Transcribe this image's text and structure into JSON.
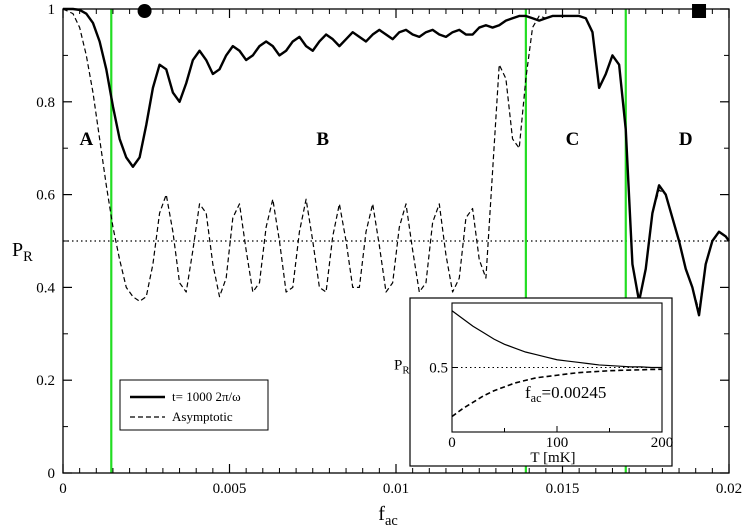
{
  "chart_data": [
    {
      "type": "line",
      "title": "",
      "xlabel": "f",
      "xlabel_sub": "ac",
      "ylabel": "P",
      "ylabel_sub": "R",
      "xlim": [
        0,
        0.02
      ],
      "ylim": [
        0,
        1
      ],
      "xticks": [
        0,
        0.005,
        0.01,
        0.015,
        0.02
      ],
      "xtick_labels": [
        "0",
        "0.005",
        "0.01",
        "0.015",
        "0.02"
      ],
      "yticks": [
        0,
        0.2,
        0.4,
        0.6,
        0.8,
        1
      ],
      "ytick_labels": [
        "0",
        "0.2",
        "0.4",
        "0.6",
        "0.8",
        "1"
      ],
      "legend_position": "bottom-left",
      "vertical_lines": {
        "color": "#22dd22",
        "x": [
          0.00145,
          0.0139,
          0.0169
        ]
      },
      "reference_line": {
        "y": 0.5,
        "style": "dotted"
      },
      "region_labels": [
        {
          "text": "A",
          "x": 0.0007,
          "y": 0.72
        },
        {
          "text": "B",
          "x": 0.0078,
          "y": 0.72
        },
        {
          "text": "C",
          "x": 0.0153,
          "y": 0.72
        },
        {
          "text": "D",
          "x": 0.0187,
          "y": 0.72
        }
      ],
      "markers": [
        {
          "shape": "circle",
          "x": 0.00245,
          "y": 1.0
        },
        {
          "shape": "square",
          "x": 0.0191,
          "y": 1.0
        }
      ],
      "series": [
        {
          "name": "t= 1000 2π/ω",
          "style": "solid-thick",
          "x": [
            0,
            0.0003,
            0.0005,
            0.0007,
            0.0009,
            0.0011,
            0.0013,
            0.0015,
            0.0017,
            0.0019,
            0.0021,
            0.0023,
            0.0025,
            0.0027,
            0.0029,
            0.0031,
            0.0033,
            0.0035,
            0.0037,
            0.0039,
            0.0041,
            0.0043,
            0.0045,
            0.0047,
            0.0049,
            0.0051,
            0.0053,
            0.0055,
            0.0057,
            0.0059,
            0.0061,
            0.0063,
            0.0065,
            0.0067,
            0.0069,
            0.0071,
            0.0073,
            0.0075,
            0.0077,
            0.0079,
            0.0081,
            0.0083,
            0.0085,
            0.0087,
            0.0089,
            0.0091,
            0.0093,
            0.0095,
            0.0097,
            0.0099,
            0.0101,
            0.0103,
            0.0105,
            0.0107,
            0.0109,
            0.0111,
            0.0113,
            0.0115,
            0.0117,
            0.0119,
            0.0121,
            0.0123,
            0.0125,
            0.0127,
            0.0129,
            0.0131,
            0.0133,
            0.0135,
            0.0137,
            0.0139,
            0.0141,
            0.0143,
            0.0145,
            0.0147,
            0.0149,
            0.0151,
            0.0153,
            0.0155,
            0.0157,
            0.0159,
            0.0161,
            0.0163,
            0.0165,
            0.0167,
            0.0169,
            0.0171,
            0.0173,
            0.0175,
            0.0177,
            0.0179,
            0.0181,
            0.0183,
            0.0185,
            0.0187,
            0.0189,
            0.0191,
            0.0193,
            0.0195,
            0.0197,
            0.0199,
            0.02
          ],
          "y": [
            1.0,
            1.0,
            0.998,
            0.99,
            0.97,
            0.93,
            0.87,
            0.79,
            0.72,
            0.68,
            0.66,
            0.68,
            0.75,
            0.83,
            0.88,
            0.87,
            0.82,
            0.8,
            0.84,
            0.89,
            0.91,
            0.89,
            0.86,
            0.87,
            0.9,
            0.92,
            0.91,
            0.89,
            0.9,
            0.92,
            0.93,
            0.92,
            0.9,
            0.91,
            0.93,
            0.94,
            0.92,
            0.91,
            0.93,
            0.945,
            0.935,
            0.92,
            0.935,
            0.95,
            0.94,
            0.93,
            0.945,
            0.955,
            0.945,
            0.935,
            0.95,
            0.955,
            0.945,
            0.94,
            0.95,
            0.955,
            0.945,
            0.94,
            0.95,
            0.955,
            0.945,
            0.945,
            0.96,
            0.965,
            0.96,
            0.965,
            0.975,
            0.98,
            0.985,
            0.985,
            0.98,
            0.975,
            0.98,
            0.985,
            0.985,
            0.985,
            0.985,
            0.985,
            0.98,
            0.95,
            0.83,
            0.86,
            0.9,
            0.88,
            0.74,
            0.45,
            0.37,
            0.44,
            0.56,
            0.62,
            0.6,
            0.55,
            0.5,
            0.44,
            0.4,
            0.34,
            0.45,
            0.5,
            0.52,
            0.51,
            0.5
          ]
        },
        {
          "name": "Asymptotic",
          "style": "dashed",
          "x": [
            0,
            0.0003,
            0.0005,
            0.0007,
            0.0009,
            0.0011,
            0.0013,
            0.0015,
            0.0017,
            0.0019,
            0.0021,
            0.0023,
            0.0025,
            0.0027,
            0.0029,
            0.0031,
            0.0033,
            0.0035,
            0.0037,
            0.0039,
            0.0041,
            0.0043,
            0.0045,
            0.0047,
            0.0049,
            0.0051,
            0.0053,
            0.0055,
            0.0057,
            0.0059,
            0.0061,
            0.0063,
            0.0065,
            0.0067,
            0.0069,
            0.0071,
            0.0073,
            0.0075,
            0.0077,
            0.0079,
            0.0081,
            0.0083,
            0.0085,
            0.0087,
            0.0089,
            0.0091,
            0.0093,
            0.0095,
            0.0097,
            0.0099,
            0.0101,
            0.0103,
            0.0105,
            0.0107,
            0.0109,
            0.0111,
            0.0113,
            0.0115,
            0.0117,
            0.0119,
            0.0121,
            0.0123,
            0.0125,
            0.0127,
            0.0129,
            0.0131,
            0.0133,
            0.0135,
            0.0137,
            0.0139,
            0.0141,
            0.0143,
            0.0145,
            0.0147,
            0.0149,
            0.0151,
            0.0153,
            0.0155,
            0.0157,
            0.0159,
            0.0161,
            0.0163,
            0.0165,
            0.0167,
            0.0169,
            0.0171,
            0.0173,
            0.0175,
            0.0177,
            0.0179,
            0.0181,
            0.0183,
            0.0185,
            0.0187,
            0.0189,
            0.0191,
            0.0193,
            0.0195,
            0.0197,
            0.0199,
            0.02
          ],
          "y": [
            1.0,
            0.99,
            0.96,
            0.9,
            0.82,
            0.72,
            0.62,
            0.53,
            0.46,
            0.4,
            0.38,
            0.37,
            0.38,
            0.45,
            0.56,
            0.6,
            0.52,
            0.41,
            0.39,
            0.48,
            0.58,
            0.56,
            0.45,
            0.38,
            0.42,
            0.55,
            0.58,
            0.48,
            0.39,
            0.41,
            0.53,
            0.59,
            0.5,
            0.39,
            0.4,
            0.52,
            0.59,
            0.5,
            0.4,
            0.39,
            0.51,
            0.58,
            0.5,
            0.4,
            0.4,
            0.52,
            0.58,
            0.49,
            0.39,
            0.41,
            0.53,
            0.58,
            0.48,
            0.39,
            0.41,
            0.54,
            0.58,
            0.47,
            0.39,
            0.42,
            0.55,
            0.57,
            0.46,
            0.42,
            0.65,
            0.88,
            0.85,
            0.72,
            0.7,
            0.85,
            0.96,
            0.985,
            0.98,
            0.985,
            0.985,
            0.985,
            0.985,
            0.985,
            0.98,
            0.95,
            0.83,
            0.86,
            0.9,
            0.88,
            0.74,
            0.45,
            0.37,
            0.44,
            0.56,
            0.61,
            0.6,
            0.55,
            0.5,
            0.44,
            0.4,
            0.35,
            0.45,
            0.5,
            0.52,
            0.51,
            0.5
          ]
        }
      ]
    },
    {
      "type": "line",
      "role": "inset",
      "title": "",
      "xlabel": "T [mK]",
      "ylabel": "P",
      "ylabel_sub": "R",
      "xlim": [
        0,
        200
      ],
      "ylim": [
        0,
        1
      ],
      "xticks": [
        0,
        100,
        200
      ],
      "xtick_labels": [
        "0",
        "100",
        "200"
      ],
      "yticks": [
        0.5
      ],
      "ytick_labels": [
        "0.5"
      ],
      "reference_line": {
        "y": 0.5,
        "style": "dotted"
      },
      "annotation": {
        "text": "f",
        "sub": "ac",
        "value": "=0.00245"
      },
      "series": [
        {
          "style": "solid",
          "x": [
            0,
            10,
            20,
            30,
            40,
            50,
            60,
            70,
            80,
            90,
            100,
            110,
            120,
            130,
            140,
            150,
            160,
            170,
            180,
            190,
            200
          ],
          "y": [
            0.94,
            0.88,
            0.82,
            0.77,
            0.72,
            0.68,
            0.65,
            0.62,
            0.6,
            0.58,
            0.56,
            0.55,
            0.54,
            0.53,
            0.52,
            0.515,
            0.51,
            0.505,
            0.505,
            0.5,
            0.5
          ]
        },
        {
          "style": "dashed",
          "x": [
            0,
            10,
            20,
            30,
            40,
            50,
            60,
            70,
            80,
            90,
            100,
            110,
            120,
            130,
            140,
            150,
            160,
            170,
            180,
            190,
            200
          ],
          "y": [
            0.12,
            0.18,
            0.23,
            0.28,
            0.32,
            0.35,
            0.38,
            0.4,
            0.42,
            0.43,
            0.44,
            0.45,
            0.46,
            0.465,
            0.47,
            0.475,
            0.478,
            0.48,
            0.482,
            0.485,
            0.486
          ]
        }
      ]
    }
  ]
}
